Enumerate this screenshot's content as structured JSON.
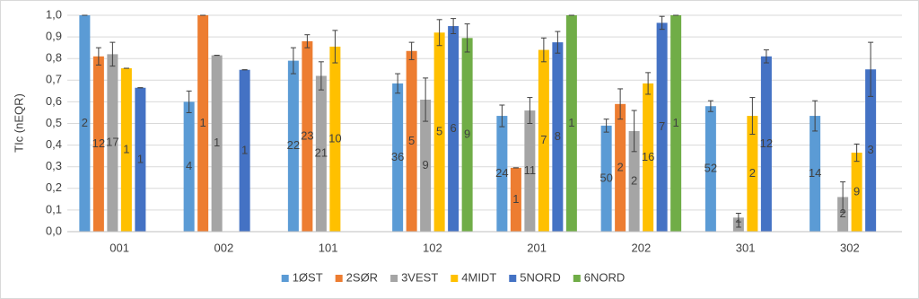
{
  "chart_data": {
    "type": "bar",
    "y_label": "TIc (nEQR)",
    "categories": [
      "001",
      "002",
      "101",
      "102",
      "201",
      "202",
      "301",
      "302"
    ],
    "ylim": [
      0,
      1
    ],
    "yticks": [
      {
        "value": 0,
        "label": "0,0"
      },
      {
        "value": 0.1,
        "label": "0,1"
      },
      {
        "value": 0.2,
        "label": "0,2"
      },
      {
        "value": 0.3,
        "label": "0,3"
      },
      {
        "value": 0.4,
        "label": "0,4"
      },
      {
        "value": 0.5,
        "label": "0,5"
      },
      {
        "value": 0.6,
        "label": "0,6"
      },
      {
        "value": 0.7,
        "label": "0,7"
      },
      {
        "value": 0.8,
        "label": "0,8"
      },
      {
        "value": 0.9,
        "label": "0,9"
      },
      {
        "value": 1,
        "label": "1,0"
      }
    ],
    "grid": true,
    "legend": "bottom",
    "series": [
      {
        "name": "1ØST",
        "color": "#5b9bd5",
        "values": [
          1.0,
          0.6,
          0.79,
          0.685,
          0.535,
          0.49,
          0.58,
          0.535
        ],
        "errors": [
          0,
          0.05,
          0.06,
          0.045,
          0.05,
          0.03,
          0.025,
          0.07
        ],
        "n": [
          2,
          4,
          22,
          36,
          24,
          50,
          52,
          14
        ]
      },
      {
        "name": "2SØR",
        "color": "#ed7d31",
        "values": [
          0.81,
          1.0,
          0.88,
          0.835,
          0.295,
          0.59,
          null,
          null
        ],
        "errors": [
          0.04,
          0,
          0.03,
          0.04,
          0,
          0.07,
          null,
          null
        ],
        "n": [
          12,
          1,
          23,
          5,
          1,
          2,
          null,
          null
        ]
      },
      {
        "name": "3VEST",
        "color": "#a5a5a5",
        "values": [
          0.82,
          0.815,
          0.72,
          0.61,
          0.56,
          0.465,
          0.065,
          0.16
        ],
        "errors": [
          0.055,
          0,
          0.065,
          0.1,
          0.06,
          0.095,
          0.02,
          0.07
        ],
        "n": [
          17,
          1,
          21,
          9,
          11,
          2,
          1,
          2
        ]
      },
      {
        "name": "4MIDT",
        "color": "#ffc000",
        "values": [
          0.755,
          null,
          0.855,
          0.92,
          0.84,
          0.685,
          0.535,
          0.365
        ],
        "errors": [
          0,
          null,
          0.075,
          0.06,
          0.055,
          0.05,
          0.085,
          0.04
        ],
        "n": [
          1,
          null,
          10,
          5,
          7,
          16,
          2,
          9
        ]
      },
      {
        "name": "5NORD",
        "color": "#4472c4",
        "values": [
          0.665,
          0.748,
          null,
          0.95,
          0.875,
          0.965,
          0.81,
          0.75
        ],
        "errors": [
          0,
          0,
          null,
          0.035,
          0.05,
          0.03,
          0.03,
          0.125
        ],
        "n": [
          1,
          1,
          null,
          6,
          8,
          7,
          12,
          3
        ]
      },
      {
        "name": "6NORD",
        "color": "#70ad47",
        "values": [
          null,
          null,
          null,
          0.895,
          1.0,
          1.0,
          null,
          null
        ],
        "errors": [
          null,
          null,
          null,
          0.065,
          0,
          0,
          null,
          null
        ],
        "n": [
          null,
          null,
          null,
          9,
          1,
          1,
          null,
          null
        ]
      }
    ]
  }
}
